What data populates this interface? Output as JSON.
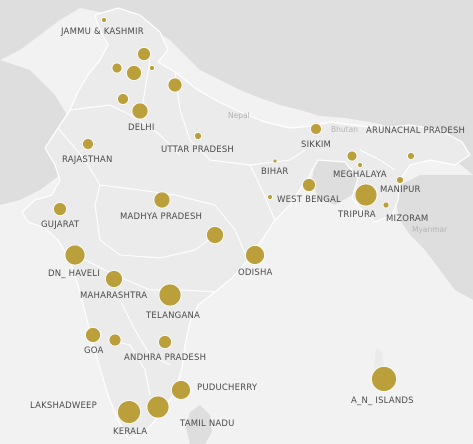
{
  "colors": {
    "water": "#f2f2f2",
    "land": "#d8d8d8",
    "india": "#ebebeb",
    "border": "#ffffff",
    "bubble": "#b5982a",
    "label": "#4a4a4a"
  },
  "labels": {
    "jammu_kashmir": "JAMMU & KASHMIR",
    "delhi": "DELHI",
    "rajasthan": "RAJASTHAN",
    "uttar_pradesh": "UTTAR PRADESH",
    "nepal": "Nepal",
    "bhutan": "Bhutan",
    "sikkim": "SIKKIM",
    "arunachal_pradesh": "ARUNACHAL PRADESH",
    "bihar": "BIHAR",
    "meghalaya": "MEGHALAYA",
    "manipur": "MANIPUR",
    "west_bengal": "WEST BENGAL",
    "tripura": "TRIPURA",
    "mizoram": "MIZORAM",
    "myanmar": "Myanmar",
    "gujarat": "GUJARAT",
    "madhya_pradesh": "MADHYA PRADESH",
    "dn_haveli": "DN_ HAVELI",
    "odisha": "ODISHA",
    "maharashtra": "MAHARASHTRA",
    "telangana": "TELANGANA",
    "goa": "GOA",
    "andhra_pradesh": "ANDHRA PRADESH",
    "puducherry": "PUDUCHERRY",
    "lakshadweep": "LAKSHADWEEP",
    "an_islands": "A_N_ ISLANDS",
    "kerala": "KERALA",
    "tamil_nadu": "TAMIL NADU"
  }
}
